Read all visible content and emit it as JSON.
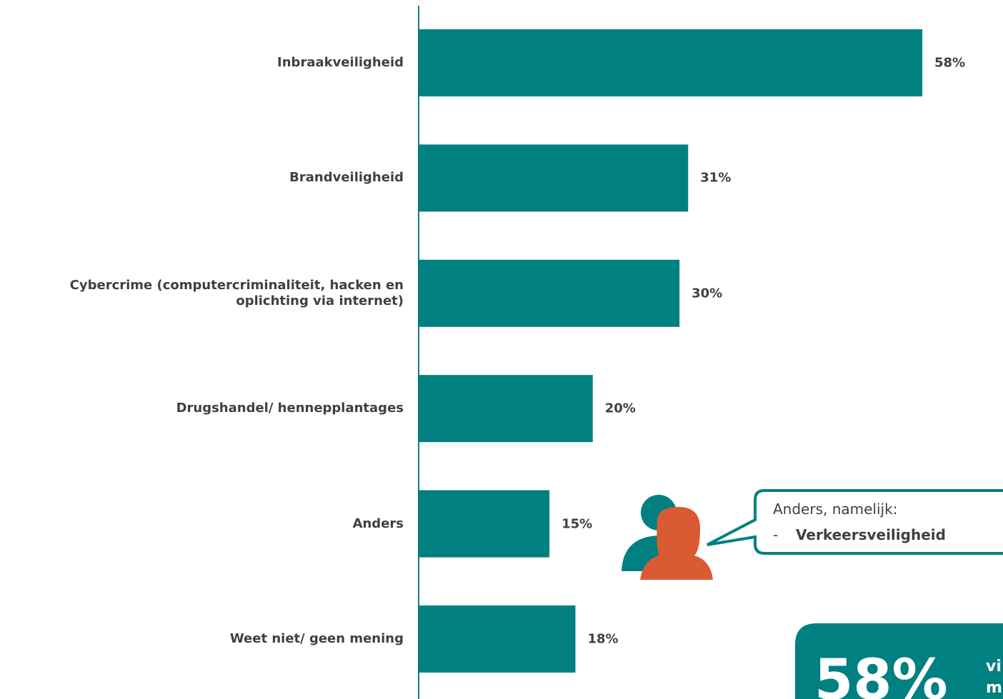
{
  "chart_data": {
    "type": "bar",
    "orientation": "horizontal",
    "categories": [
      "Inbraakveiligheid",
      "Brandveiligheid",
      "Cybercrime (computercriminaliteit, hacken en oplichting via internet)",
      "Drugshandel/ hennepplantages",
      "Anders",
      "Weet niet/ geen mening"
    ],
    "values": [
      58,
      31,
      30,
      20,
      15,
      18
    ],
    "value_labels": [
      "58%",
      "31%",
      "30%",
      "20%",
      "15%",
      "18%"
    ],
    "color": "#008080",
    "callout": {
      "title": "Anders, namelijk:",
      "bullet": "-",
      "item": "Verkeersveiligheid"
    },
    "highlight": {
      "value": "58%",
      "text_lines": [
        "vi",
        "m"
      ]
    }
  }
}
